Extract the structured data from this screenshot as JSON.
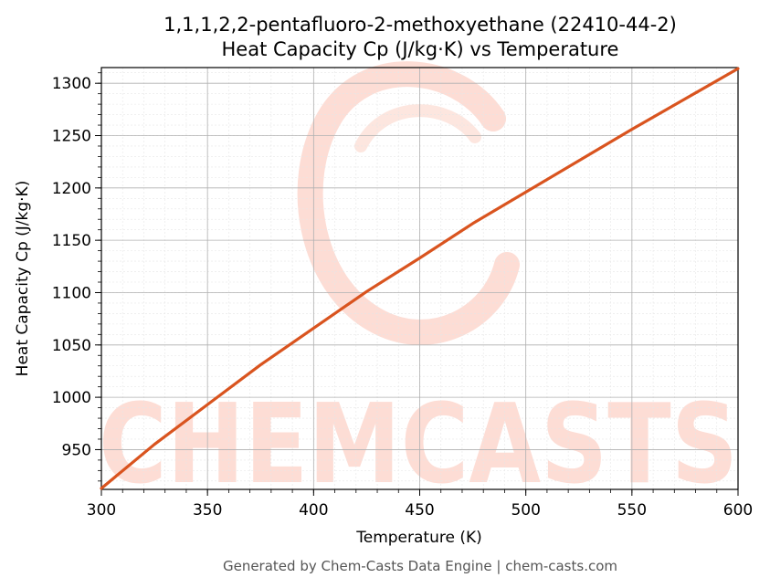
{
  "chart_data": {
    "type": "line",
    "title": "1,1,1,2,2-pentafluoro-2-methoxyethane (22410-44-2)",
    "subtitle": "Heat Capacity Cp (J/kg·K) vs Temperature",
    "xlabel": "Temperature (K)",
    "ylabel": "Heat Capacity Cp (J/kg·K)",
    "xlim": [
      300,
      600
    ],
    "ylim": [
      912,
      1315
    ],
    "x_ticks": [
      300,
      350,
      400,
      450,
      500,
      550,
      600
    ],
    "y_ticks": [
      950,
      1000,
      1050,
      1100,
      1150,
      1200,
      1250,
      1300
    ],
    "grid": true,
    "series": [
      {
        "color": "#d9541f",
        "x": [
          300,
          325,
          350,
          375,
          400,
          425,
          450,
          475,
          500,
          525,
          550,
          575,
          600
        ],
        "y": [
          913,
          955,
          993,
          1031,
          1066,
          1101,
          1133,
          1166,
          1196,
          1226,
          1256,
          1285,
          1314
        ]
      }
    ]
  },
  "watermark": {
    "text": "CHEMCASTS",
    "color": "#fdddd5"
  },
  "footer": "Generated by Chem-Casts Data Engine | chem-casts.com"
}
